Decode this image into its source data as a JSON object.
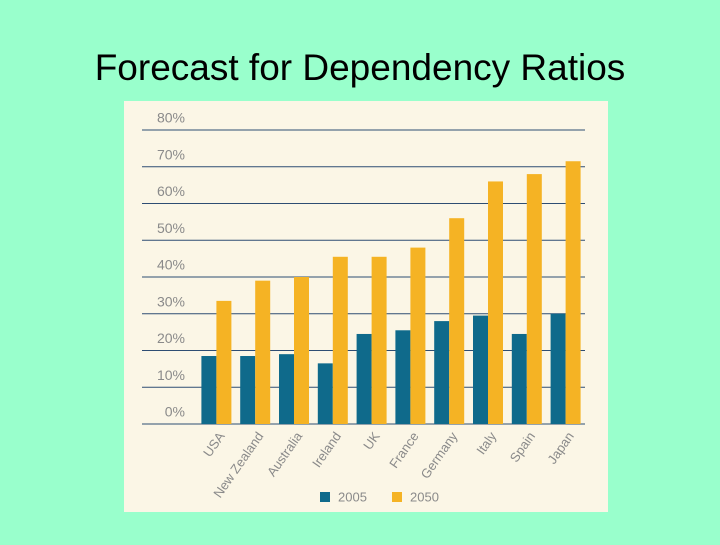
{
  "chart_data": {
    "type": "bar",
    "title": "Forecast for Dependency Ratios",
    "categories": [
      "USA",
      "New Zealand",
      "Australia",
      "Ireland",
      "UK",
      "France",
      "Germany",
      "Italy",
      "Spain",
      "Japan"
    ],
    "series": [
      {
        "name": "2005",
        "color": "#0f6a8b",
        "values": [
          18.5,
          18.5,
          19,
          16.5,
          24.5,
          25.5,
          28,
          29.5,
          24.5,
          30
        ]
      },
      {
        "name": "2050",
        "color": "#f5b324",
        "values": [
          33.5,
          39,
          40,
          45.5,
          45.5,
          48,
          56,
          66,
          68,
          71.5
        ]
      }
    ],
    "ylim": [
      0,
      80
    ],
    "yticks": [
      {
        "value": 0,
        "label": "0%"
      },
      {
        "value": 10,
        "label": "10%"
      },
      {
        "value": 20,
        "label": "20%"
      },
      {
        "value": 30,
        "label": "30%"
      },
      {
        "value": 40,
        "label": "40%"
      },
      {
        "value": 50,
        "label": "50%"
      },
      {
        "value": 60,
        "label": "60%"
      },
      {
        "value": 70,
        "label": "70%"
      },
      {
        "value": 80,
        "label": "80%"
      }
    ],
    "grid": true
  }
}
